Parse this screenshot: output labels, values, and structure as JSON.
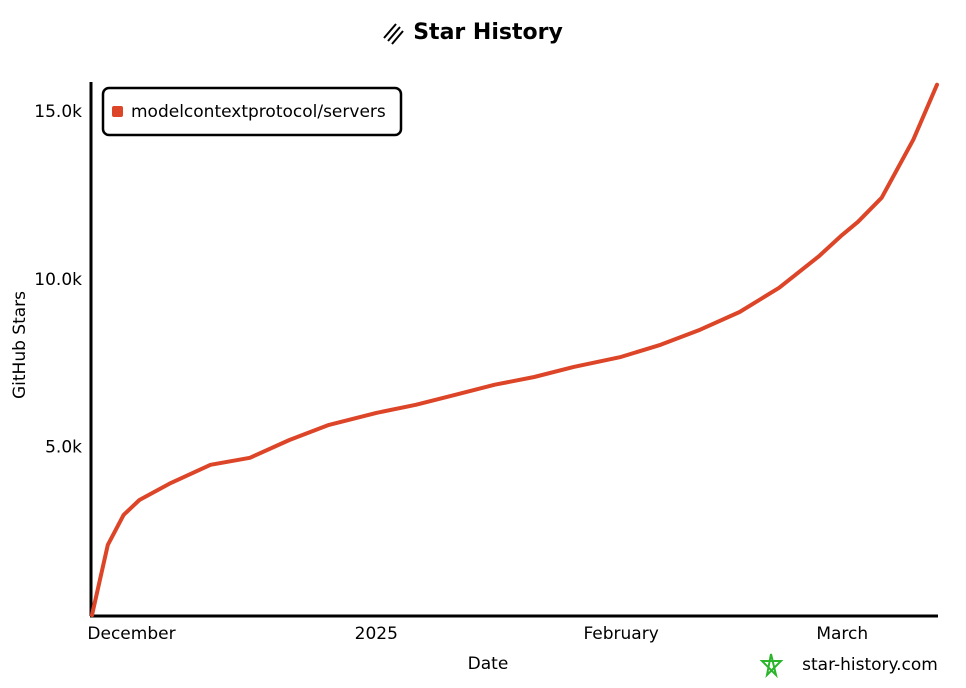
{
  "chart_data": {
    "type": "line",
    "title": "Star History",
    "x_label": "Date",
    "y_label": "GitHub Stars",
    "watermark": "star-history.com",
    "x": [
      -5,
      -3,
      -1,
      1,
      5,
      10,
      15,
      20,
      25,
      31,
      36,
      41,
      46,
      51,
      56,
      62,
      67,
      72,
      77,
      82,
      87,
      90,
      92,
      95,
      99,
      102
    ],
    "series": [
      {
        "name": "modelcontextprotocol/servers",
        "color": "#dd4528",
        "values": [
          0,
          2090,
          2985,
          3430,
          3940,
          4480,
          4690,
          5220,
          5670,
          6030,
          6270,
          6570,
          6870,
          7100,
          7400,
          7700,
          8060,
          8510,
          9040,
          9760,
          10690,
          11340,
          11730,
          12450,
          14180,
          15820
        ]
      }
    ],
    "xlim": [
      -5,
      102
    ],
    "xticks": [
      {
        "value": 0,
        "label": "December"
      },
      {
        "value": 31,
        "label": "2025"
      },
      {
        "value": 62,
        "label": "February"
      },
      {
        "value": 90,
        "label": "March"
      }
    ],
    "ylim": [
      0,
      15900
    ],
    "yticks": [
      {
        "value": 5000,
        "label": "5.0k"
      },
      {
        "value": 10000,
        "label": "10.0k"
      },
      {
        "value": 15000,
        "label": "15.0k"
      }
    ],
    "grid": false,
    "legend": "upper-left"
  }
}
